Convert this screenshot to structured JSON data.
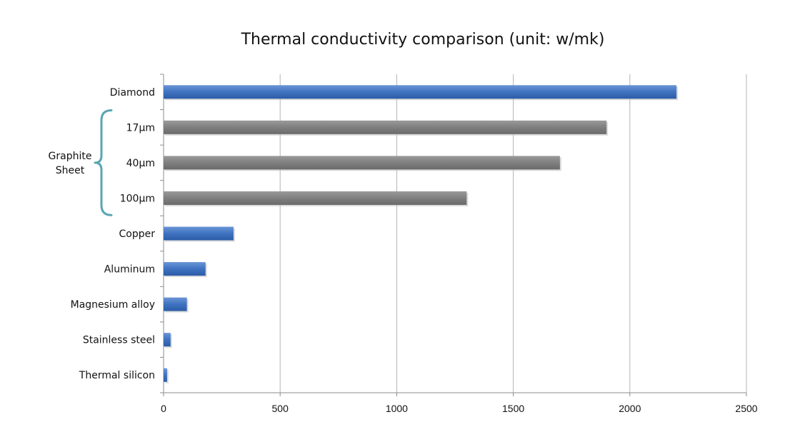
{
  "chart_data": {
    "type": "bar",
    "orientation": "horizontal",
    "title": "Thermal conductivity comparison (unit: w/mk)",
    "xlabel": "",
    "ylabel": "",
    "xlim": [
      0,
      2500
    ],
    "x_ticks": [
      0,
      500,
      1000,
      1500,
      2000,
      2500
    ],
    "grid": "vertical",
    "legend": "none",
    "categories": [
      "Diamond",
      "17μm",
      "40μm",
      "100μm",
      "Copper",
      "Aluminum",
      "Magnesium alloy",
      "Stainless steel",
      "Thermal silicon"
    ],
    "values": [
      2200,
      1900,
      1700,
      1300,
      300,
      180,
      100,
      30,
      15
    ],
    "bar_colors": [
      "#3f72c0",
      "#7f7f7f",
      "#7f7f7f",
      "#7f7f7f",
      "#3f72c0",
      "#3f72c0",
      "#3f72c0",
      "#3f72c0",
      "#3f72c0"
    ],
    "groups": [
      {
        "label_lines": [
          "Graphite",
          "Sheet"
        ],
        "start": 1,
        "end": 3,
        "bracket_color": "#5aa6b3"
      }
    ]
  }
}
